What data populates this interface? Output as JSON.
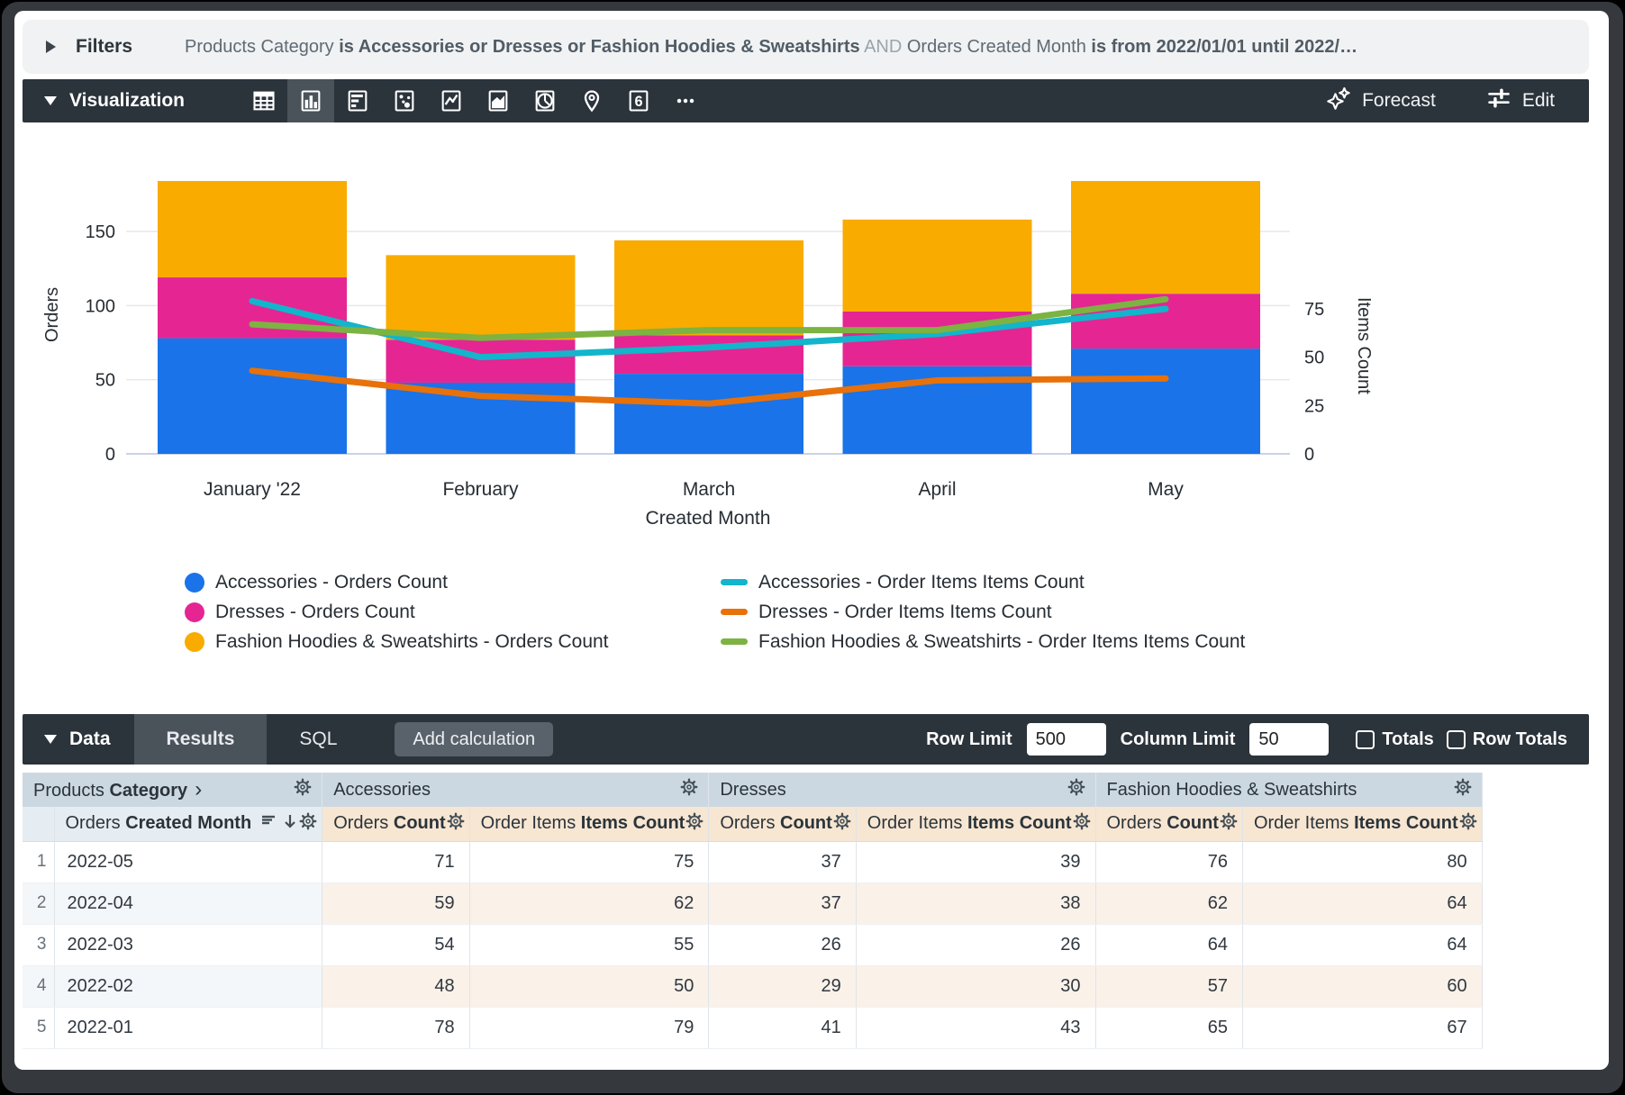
{
  "filters": {
    "label": "Filters",
    "segments": [
      {
        "text": "Products Category ",
        "style": "normal"
      },
      {
        "text": "is Accessories or Dresses or Fashion Hoodies & Sweatshirts",
        "style": "bold"
      },
      {
        "text": " AND ",
        "style": "muted"
      },
      {
        "text": "Orders Created Month ",
        "style": "normal"
      },
      {
        "text": "is from 2022/01/01 until 2022/…",
        "style": "bold"
      }
    ]
  },
  "viz_bar": {
    "title": "Visualization",
    "icons": [
      {
        "name": "table-chart-icon"
      },
      {
        "name": "column-chart-icon",
        "selected": true
      },
      {
        "name": "bar-chart-icon"
      },
      {
        "name": "scatter-chart-icon"
      },
      {
        "name": "line-chart-icon"
      },
      {
        "name": "area-chart-icon"
      },
      {
        "name": "pie-chart-icon"
      },
      {
        "name": "map-pin-icon"
      },
      {
        "name": "single-value-icon",
        "label": "6"
      },
      {
        "name": "more-icon"
      }
    ],
    "forecast_label": "Forecast",
    "edit_label": "Edit"
  },
  "chart_data": {
    "type": "combo (stacked bar + line)",
    "categories": [
      "January '22",
      "February",
      "March",
      "April",
      "May"
    ],
    "bar_series": [
      {
        "name": "Accessories - Orders Count",
        "color": "#1A73E8",
        "values": [
          78,
          48,
          54,
          59,
          71
        ]
      },
      {
        "name": "Dresses - Orders Count",
        "color": "#E52592",
        "values": [
          41,
          29,
          26,
          37,
          37
        ]
      },
      {
        "name": "Fashion Hoodies & Sweatshirts - Orders Count",
        "color": "#F9AB00",
        "values": [
          65,
          57,
          64,
          62,
          76
        ]
      }
    ],
    "line_series": [
      {
        "name": "Accessories - Order Items Items Count",
        "color": "#12B5CB",
        "values": [
          79,
          50,
          55,
          62,
          75
        ]
      },
      {
        "name": "Dresses - Order Items Items Count",
        "color": "#E8710A",
        "values": [
          43,
          30,
          26,
          38,
          39
        ]
      },
      {
        "name": "Fashion Hoodies & Sweatshirts - Order Items Items Count",
        "color": "#7CB342",
        "values": [
          67,
          60,
          64,
          64,
          80
        ]
      }
    ],
    "left_axis": {
      "title": "Orders",
      "ticks": [
        0,
        50,
        100,
        150
      ],
      "max": 200
    },
    "right_axis": {
      "title": "Items Count",
      "ticks": [
        0,
        25,
        50,
        75
      ],
      "max": 87
    },
    "xlabel": "Created Month",
    "stacked": true,
    "grid": "horizontal only",
    "legend_position": "bottom, two columns"
  },
  "data_bar": {
    "title": "Data",
    "tabs": [
      {
        "label": "Results",
        "active": true
      },
      {
        "label": "SQL",
        "active": false
      }
    ],
    "add_calculation_label": "Add calculation",
    "row_limit_label": "Row Limit",
    "row_limit_value": "500",
    "column_limit_label": "Column Limit",
    "column_limit_value": "50",
    "checkboxes": [
      {
        "label": "Totals",
        "checked": false
      },
      {
        "label": "Row Totals",
        "checked": false
      }
    ]
  },
  "table": {
    "dimension_group": {
      "prefix": "Products ",
      "bold": "Category",
      "chevron": "›"
    },
    "measure_groups": [
      "Accessories",
      "Dresses",
      "Fashion Hoodies & Sweatshirts"
    ],
    "dimension_header": {
      "prefix": "Orders ",
      "bold": "Created Month"
    },
    "measure_headers": [
      {
        "prefix": "Orders ",
        "bold": "Count"
      },
      {
        "prefix": "Order Items ",
        "bold": "Items Count"
      }
    ],
    "rows": [
      {
        "n": "1",
        "month": "2022-05",
        "values": [
          "71",
          "75",
          "37",
          "39",
          "76",
          "80"
        ]
      },
      {
        "n": "2",
        "month": "2022-04",
        "values": [
          "59",
          "62",
          "37",
          "38",
          "62",
          "64"
        ]
      },
      {
        "n": "3",
        "month": "2022-03",
        "values": [
          "54",
          "55",
          "26",
          "26",
          "64",
          "64"
        ]
      },
      {
        "n": "4",
        "month": "2022-02",
        "values": [
          "48",
          "50",
          "29",
          "30",
          "57",
          "60"
        ]
      },
      {
        "n": "5",
        "month": "2022-01",
        "values": [
          "78",
          "79",
          "41",
          "43",
          "65",
          "67"
        ]
      }
    ]
  }
}
